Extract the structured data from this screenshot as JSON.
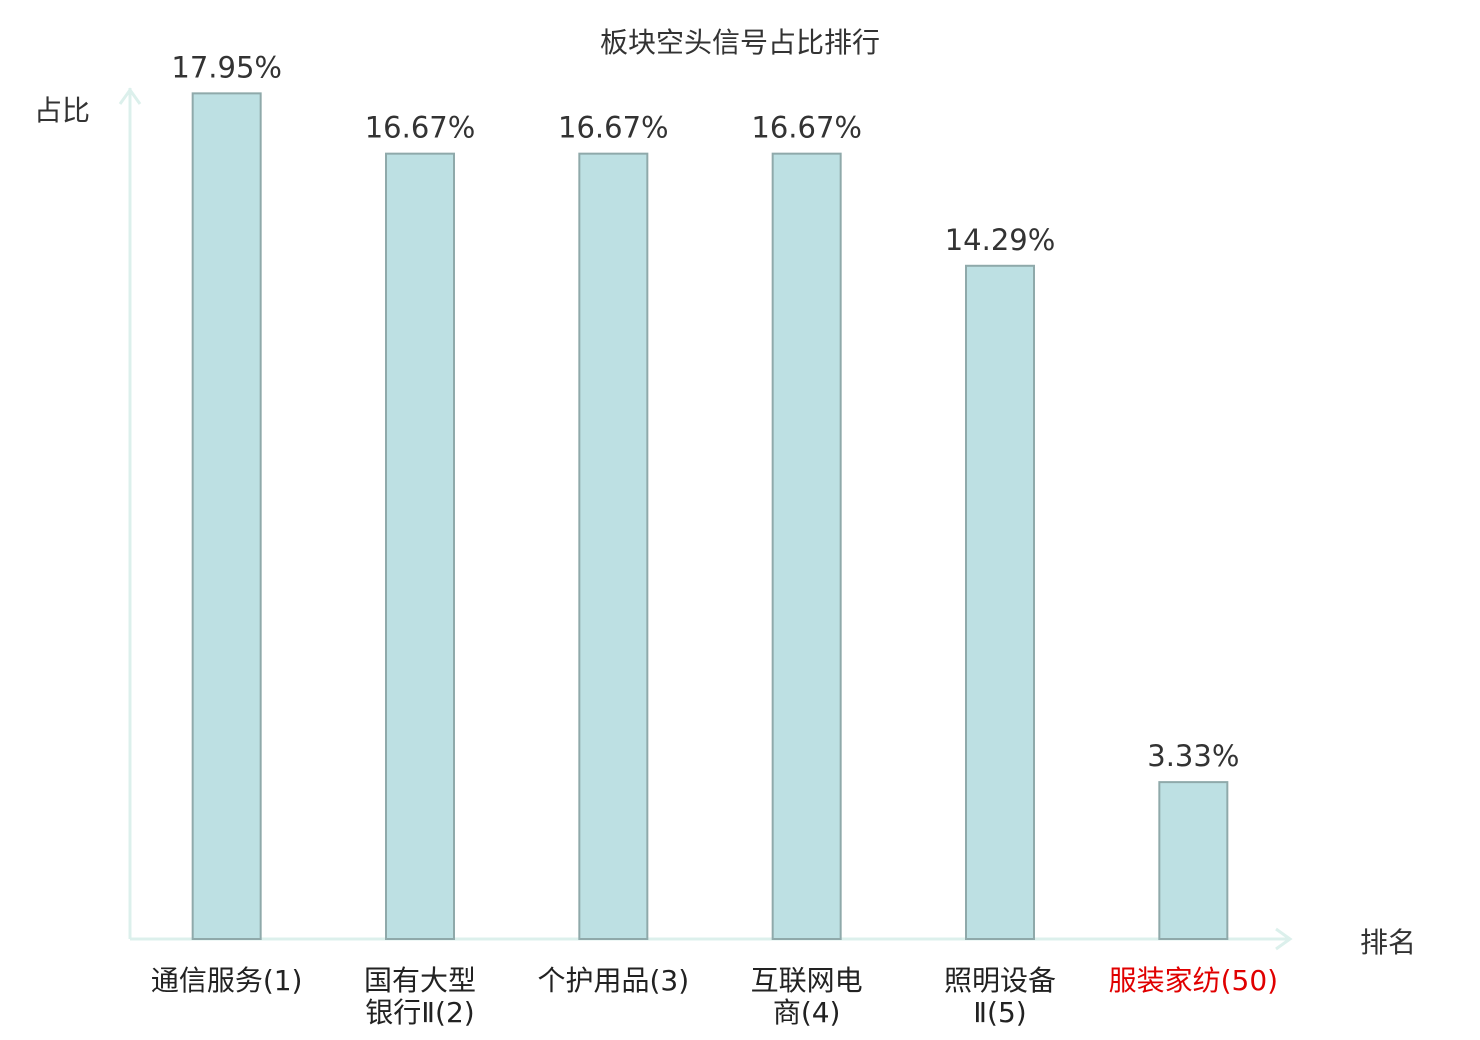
{
  "chart_data": {
    "type": "bar",
    "title": "板块空头信号占比排行",
    "y_label": "占比",
    "x_label": "排名",
    "categories": [
      "通信服务(1)",
      "国有大型\n银行Ⅱ(2)",
      "个护用品(3)",
      "互联网电\n商(4)",
      "照明设备\nⅡ(5)",
      "服装家纺(50)"
    ],
    "category_colors": [
      "#222222",
      "#222222",
      "#222222",
      "#222222",
      "#222222",
      "#e00000"
    ],
    "values": [
      17.95,
      16.67,
      16.67,
      16.67,
      14.29,
      3.33
    ],
    "value_labels": [
      "17.95%",
      "16.67%",
      "16.67%",
      "16.67%",
      "14.29%",
      "3.33%"
    ],
    "color": "#bde0e3",
    "edge_color": "#8fa9aa",
    "axis_color": "#dcf0ec",
    "ylim": [
      0,
      18
    ]
  }
}
